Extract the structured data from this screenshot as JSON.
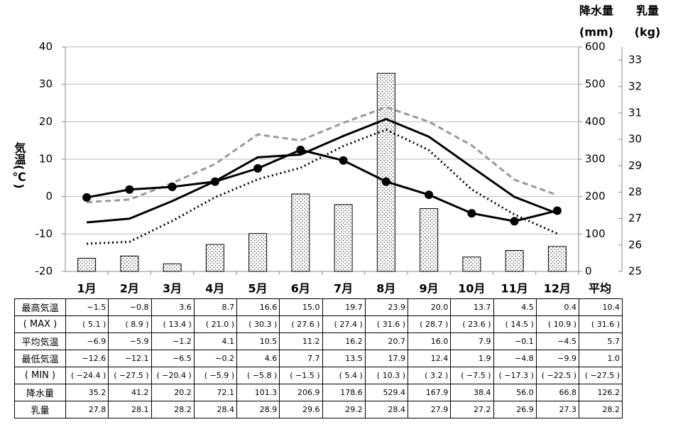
{
  "chart_data": {
    "type": "combo",
    "y_label": "気温(℃)",
    "y2_label": "降水量",
    "y2_unit": "(mm)",
    "y3_label": "乳量",
    "y3_unit": "(kg)",
    "categories": [
      "1月",
      "2月",
      "3月",
      "4月",
      "5月",
      "6月",
      "7月",
      "8月",
      "9月",
      "10月",
      "11月",
      "12月"
    ],
    "ylim": [
      -20,
      40
    ],
    "yticks": [
      -20,
      -10,
      0,
      10,
      20,
      30,
      40
    ],
    "y2lim": [
      0,
      600
    ],
    "y2ticks": [
      0,
      100,
      200,
      300,
      400,
      500,
      600
    ],
    "y3lim": [
      25,
      33.5
    ],
    "y3ticks": [
      25,
      26,
      27,
      28,
      29,
      30,
      31,
      32,
      33
    ],
    "grid": true,
    "series": [
      {
        "type": "line",
        "color": "#999999",
        "style": "dashed",
        "values": [
          -1.5,
          -0.8,
          3.6,
          8.7,
          16.6,
          15.0,
          19.7,
          23.9,
          20.0,
          13.7,
          4.5,
          0.4
        ]
      },
      {
        "type": "line",
        "color": "#000000",
        "style": "solid",
        "values": [
          -6.9,
          -5.9,
          -1.2,
          4.1,
          10.5,
          11.2,
          16.2,
          20.7,
          16.0,
          7.9,
          -0.1,
          -4.5
        ]
      },
      {
        "type": "line",
        "color": "#000000",
        "style": "dotted",
        "values": [
          -12.6,
          -12.1,
          -6.5,
          -0.2,
          4.6,
          7.7,
          13.5,
          17.9,
          12.4,
          1.9,
          -4.8,
          -9.9
        ]
      },
      {
        "type": "bar",
        "axis": "y2",
        "color": "#555555",
        "values": [
          35.2,
          41.2,
          20.2,
          72.1,
          101.3,
          206.9,
          178.6,
          529.4,
          167.9,
          38.4,
          56.0,
          66.8
        ]
      },
      {
        "type": "line",
        "axis": "y3",
        "color": "#000000",
        "style": "solid",
        "markers": true,
        "values": [
          27.8,
          28.1,
          28.2,
          28.4,
          28.9,
          29.6,
          29.2,
          28.4,
          27.9,
          27.2,
          26.9,
          27.3
        ]
      }
    ]
  },
  "table": {
    "avg_header": "平均",
    "rows": [
      [
        "最高気温",
        "−1.5",
        "−0.8",
        "3.6",
        "8.7",
        "16.6",
        "15.0",
        "19.7",
        "23.9",
        "20.0",
        "13.7",
        "4.5",
        "0.4",
        "10.4"
      ],
      [
        "( MAX )",
        "( 5.1 )",
        "( 8.9 )",
        "( 13.4 )",
        "( 21.0 )",
        "( 30.3 )",
        "( 27.6 )",
        "( 27.4 )",
        "( 31.6 )",
        "( 28.7 )",
        "( 23.6 )",
        "( 14.5 )",
        "( 10.9 )",
        "( 31.6 )"
      ],
      [
        "平均気温",
        "−6.9",
        "−5.9",
        "−1.2",
        "4.1",
        "10.5",
        "11.2",
        "16.2",
        "20.7",
        "16.0",
        "7.9",
        "−0.1",
        "−4.5",
        "5.7"
      ],
      [
        "最低気温",
        "−12.6",
        "−12.1",
        "−6.5",
        "−0.2",
        "4.6",
        "7.7",
        "13.5",
        "17.9",
        "12.4",
        "1.9",
        "−4.8",
        "−9.9",
        "1.0"
      ],
      [
        "( MIN )",
        "( −24.4 )",
        "( −27.5 )",
        "( −20.4 )",
        "( −5.9 )",
        "( −5.8 )",
        "( −1.5 )",
        "( 5.4 )",
        "( 10.3 )",
        "( 3.2 )",
        "( −7.5 )",
        "( −17.3 )",
        "( −22.5 )",
        "( −27.5 )"
      ],
      [
        "降水量",
        "35.2",
        "41.2",
        "20.2",
        "72.1",
        "101.3",
        "206.9",
        "178.6",
        "529.4",
        "167.9",
        "38.4",
        "56.0",
        "66.8",
        "126.2"
      ],
      [
        "乳量",
        "27.8",
        "28.1",
        "28.2",
        "28.4",
        "28.9",
        "29.6",
        "29.2",
        "28.4",
        "27.9",
        "27.2",
        "26.9",
        "27.3",
        "28.2"
      ]
    ]
  }
}
